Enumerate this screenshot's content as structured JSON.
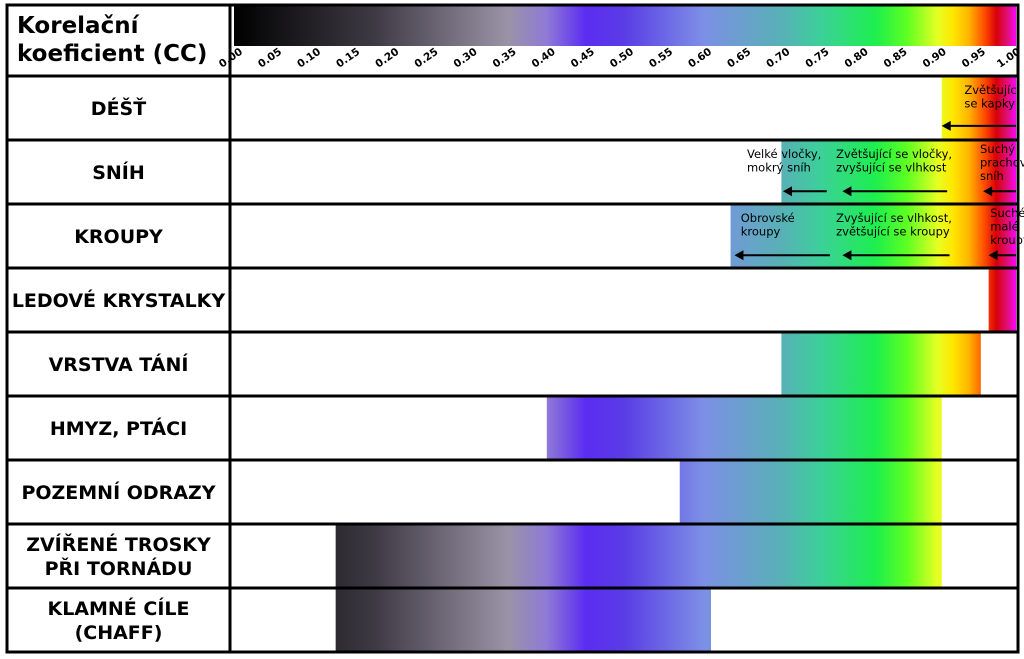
{
  "chart_data": {
    "type": "range",
    "title_lines": [
      "Korelační",
      "koeficient (CC)"
    ],
    "x_ticks": [
      "0.00",
      "0.05",
      "0.10",
      "0.15",
      "0.20",
      "0.25",
      "0.30",
      "0.35",
      "0.40",
      "0.45",
      "0.50",
      "0.55",
      "0.60",
      "0.65",
      "0.70",
      "0.75",
      "0.80",
      "0.85",
      "0.90",
      "0.95",
      "1.00"
    ],
    "xlim": [
      0,
      1
    ],
    "color_scale": [
      {
        "v": 0.0,
        "c": "#000000"
      },
      {
        "v": 0.18,
        "c": "#3e3a44"
      },
      {
        "v": 0.35,
        "c": "#9a93a6"
      },
      {
        "v": 0.4,
        "c": "#8f7ad6"
      },
      {
        "v": 0.45,
        "c": "#5b2cf2"
      },
      {
        "v": 0.5,
        "c": "#5a3de6"
      },
      {
        "v": 0.6,
        "c": "#7d8fe6"
      },
      {
        "v": 0.7,
        "c": "#58b0b6"
      },
      {
        "v": 0.75,
        "c": "#3cd09a"
      },
      {
        "v": 0.82,
        "c": "#1eee4e"
      },
      {
        "v": 0.86,
        "c": "#5cff22"
      },
      {
        "v": 0.9,
        "c": "#e6ff22"
      },
      {
        "v": 0.92,
        "c": "#ffe600"
      },
      {
        "v": 0.94,
        "c": "#ffb300"
      },
      {
        "v": 0.96,
        "c": "#ff4a00"
      },
      {
        "v": 0.975,
        "c": "#d8000a"
      },
      {
        "v": 0.99,
        "c": "#e01080"
      },
      {
        "v": 1.0,
        "c": "#ff00ff"
      }
    ],
    "rows": [
      {
        "label_lines": [
          "DÉŠŤ"
        ],
        "range": [
          0.905,
          1.0
        ],
        "annotations": [
          {
            "lines": [
              "Zvětšující",
              "se kapky"
            ],
            "x": 0.934
          }
        ],
        "arrows": [
          {
            "from": 1.0,
            "to": 0.905
          }
        ]
      },
      {
        "label_lines": [
          "SNÍH"
        ],
        "range": [
          0.7,
          1.0
        ],
        "annotations": [
          {
            "lines": [
              "Velké vločky,",
              "mokrý sníh"
            ],
            "x": 0.656
          },
          {
            "lines": [
              "Zvětšující se vločky,",
              "zvyšující se vlhkost"
            ],
            "x": 0.77
          },
          {
            "lines": [
              "Suchý",
              "prachový",
              "sníh"
            ],
            "x": 0.954
          }
        ],
        "arrows": [
          {
            "from": 0.758,
            "to": 0.702
          },
          {
            "from": 0.912,
            "to": 0.778
          },
          {
            "from": 1.0,
            "to": 0.958
          }
        ]
      },
      {
        "label_lines": [
          "KROUPY"
        ],
        "range": [
          0.635,
          1.0
        ],
        "annotations": [
          {
            "lines": [
              "Obrovské",
              "kroupy"
            ],
            "x": 0.648
          },
          {
            "lines": [
              "Zvyšující se vlhkost,",
              "zvětšující se kroupy"
            ],
            "x": 0.77
          },
          {
            "lines": [
              "Suché",
              "malé",
              "kroupy"
            ],
            "x": 0.967
          }
        ],
        "arrows": [
          {
            "from": 0.762,
            "to": 0.64
          },
          {
            "from": 0.915,
            "to": 0.778
          },
          {
            "from": 1.0,
            "to": 0.965
          }
        ]
      },
      {
        "label_lines": [
          "LEDOVÉ KRYSTALKY"
        ],
        "range": [
          0.965,
          1.0
        ],
        "annotations": [],
        "arrows": []
      },
      {
        "label_lines": [
          "VRSTVA TÁNÍ"
        ],
        "range": [
          0.7,
          0.955
        ],
        "annotations": [],
        "arrows": []
      },
      {
        "label_lines": [
          "HMYZ, PTÁCI"
        ],
        "range": [
          0.4,
          0.905
        ],
        "annotations": [],
        "arrows": []
      },
      {
        "label_lines": [
          "POZEMNÍ ODRAZY"
        ],
        "range": [
          0.57,
          0.905
        ],
        "annotations": [],
        "arrows": []
      },
      {
        "label_lines": [
          "ZVÍŘENÉ TROSKY",
          "PŘI TORNÁDU"
        ],
        "range": [
          0.13,
          0.905
        ],
        "annotations": [],
        "arrows": []
      },
      {
        "label_lines": [
          "KLAMNÉ CÍLE",
          "(CHAFF)"
        ],
        "range": [
          0.13,
          0.61
        ],
        "annotations": [],
        "arrows": []
      }
    ]
  }
}
